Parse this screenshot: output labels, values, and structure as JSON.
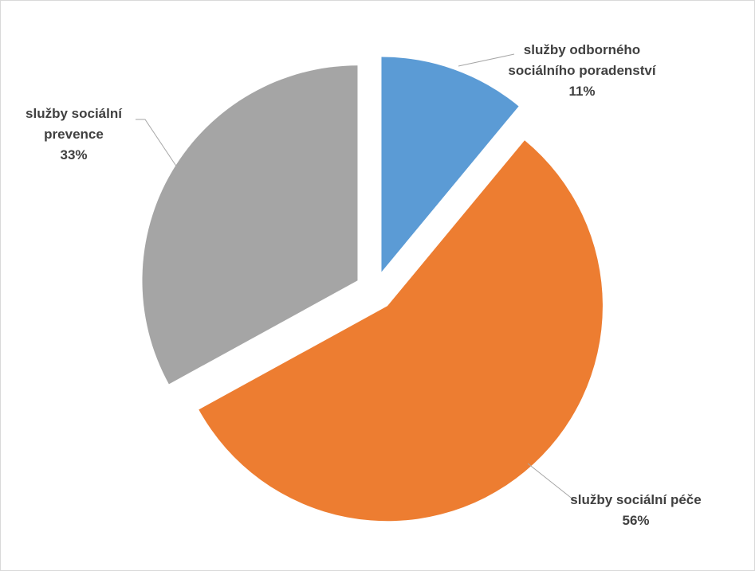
{
  "chart_data": {
    "type": "pie",
    "categories": [
      "služby odborného sociálního poradenství",
      "služby sociální péče",
      "služby sociální prevence"
    ],
    "values": [
      11,
      56,
      33
    ],
    "value_labels": [
      "11%",
      "56%",
      "33%"
    ],
    "colors": [
      "#5b9bd5",
      "#ed7d31",
      "#a5a5a5"
    ]
  }
}
